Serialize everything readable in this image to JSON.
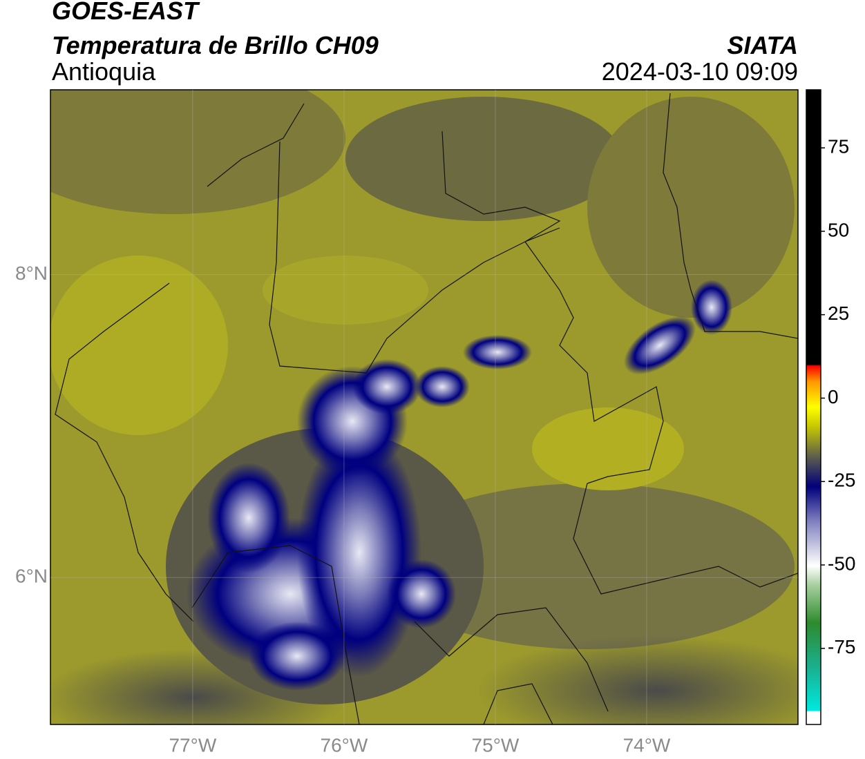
{
  "header": {
    "satellite": "GOES-EAST",
    "product": "Temperatura de Brillo CH09",
    "region": "Antioquia",
    "source": "SIATA",
    "datetime": "2024-03-10 09:09"
  },
  "map": {
    "lonlim": [
      -77.94,
      -73.0
    ],
    "latlim": [
      5.03,
      9.22
    ],
    "lon_ticks": [
      {
        "value": -77,
        "label": "77°W"
      },
      {
        "value": -76,
        "label": "76°W"
      },
      {
        "value": -75,
        "label": "75°W"
      },
      {
        "value": -74,
        "label": "74°W"
      }
    ],
    "lat_ticks": [
      {
        "value": 8,
        "label": "8°N"
      },
      {
        "value": 6,
        "label": "6°N"
      }
    ]
  },
  "colorbar": {
    "lim": [
      -97.8,
      92.4
    ],
    "ticks": [
      75,
      50,
      25,
      0,
      -25,
      -50,
      -75
    ]
  }
}
